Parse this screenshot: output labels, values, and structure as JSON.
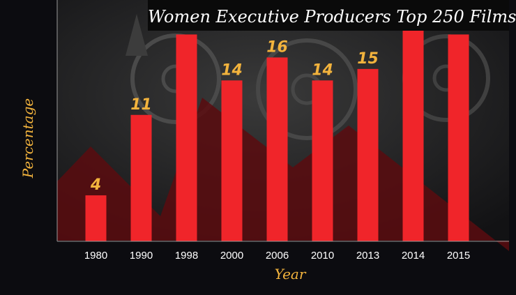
{
  "chart_data": {
    "type": "bar",
    "title": "Women Executive Producers Top 250 Films",
    "xlabel": "Year",
    "ylabel": "Percentage",
    "categories": [
      "1980",
      "1990",
      "1998",
      "2000",
      "2006",
      "2010",
      "2013",
      "2014",
      "2015"
    ],
    "values": [
      4,
      11,
      18,
      14,
      16,
      14,
      15,
      19,
      18
    ],
    "ylim": [
      0,
      21
    ],
    "grid": false,
    "legend": "none"
  },
  "colors": {
    "bar": "#f0252a",
    "data_label": "#f2b33d",
    "axis_label": "#f2b33d",
    "tick_label": "#ffffff",
    "title_text": "#ffffff",
    "background": "#0c0c10",
    "photo_backdrop": "#2b2b2b"
  }
}
